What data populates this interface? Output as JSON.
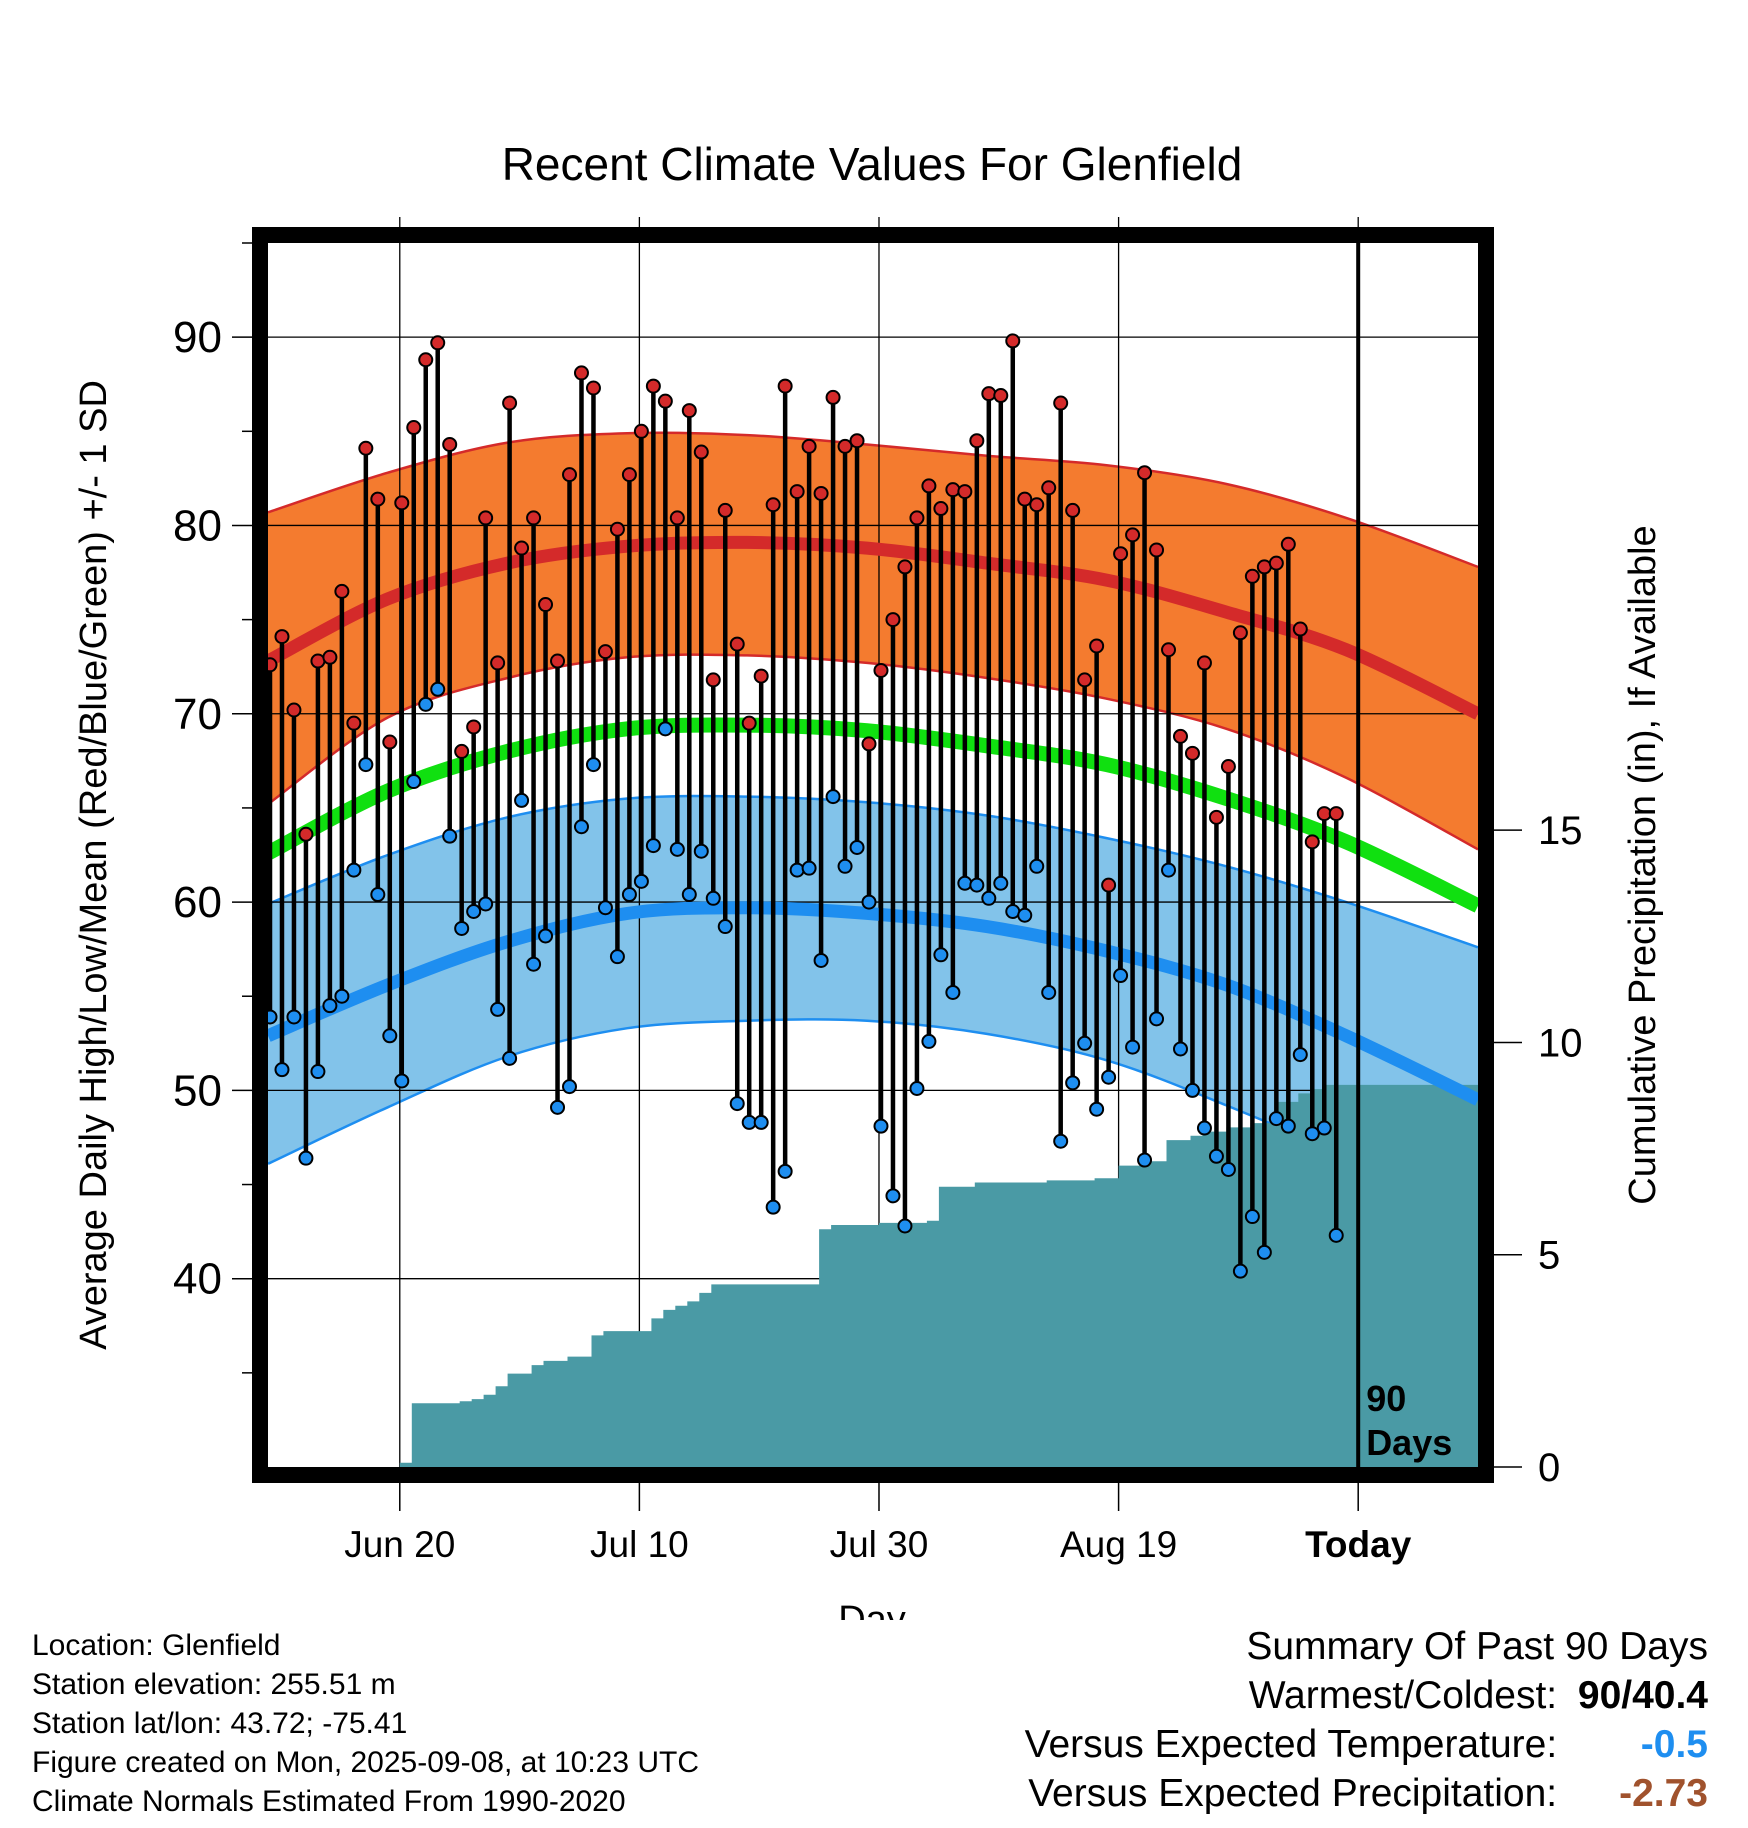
{
  "title": "Recent Climate Values For Glenfield",
  "chart_data": {
    "type": "line",
    "title": "Recent Climate Values For Glenfield",
    "xlabel": "Day",
    "ylabel_left": "Average Daily High/Low/Mean (Red/Blue/Green) +/- 1 SD",
    "ylabel_right": "Cumulative Precipitation (in), If Available",
    "x_tick_labels": [
      "Jun 20",
      "Jul 10",
      "Jul 30",
      "Aug 19",
      "Today"
    ],
    "x_tick_days": [
      11,
      31,
      51,
      71,
      91
    ],
    "xlim": [
      0,
      101
    ],
    "ylim_temp": [
      30,
      95
    ],
    "y_ticks_temp": [
      40,
      50,
      60,
      70,
      80,
      90
    ],
    "ylim_precip": [
      0,
      28.83
    ],
    "y_ticks_precip": [
      0,
      5,
      10,
      15
    ],
    "today_marker_label": "90 Days",
    "grid": true,
    "colors": {
      "high_band": "#f47b2f",
      "high_line": "#d42a2a",
      "low_band": "#82c3ea",
      "low_line": "#1e8ef0",
      "mean_line": "#10e010",
      "precip": "#4a9aa5",
      "high_marker": "#d42a2a",
      "low_marker": "#1e8ef0"
    },
    "normals_days": [
      0,
      10,
      20,
      30,
      40,
      50,
      60,
      70,
      80,
      90,
      101
    ],
    "normal_high": [
      72.8,
      76.1,
      78.0,
      78.9,
      79.1,
      78.8,
      78.0,
      77.1,
      75.4,
      73.4,
      70.0
    ],
    "normal_high_upper": [
      80.7,
      82.8,
      84.4,
      84.9,
      84.8,
      84.3,
      83.7,
      83.2,
      82.2,
      80.4,
      77.8
    ],
    "normal_high_lower": [
      65.2,
      69.8,
      71.9,
      73.0,
      73.1,
      72.7,
      71.9,
      70.8,
      69.2,
      66.6,
      62.8
    ],
    "normal_low": [
      52.9,
      55.6,
      57.9,
      59.4,
      59.7,
      59.4,
      58.7,
      57.4,
      55.6,
      52.9,
      49.5
    ],
    "normal_low_upper": [
      59.9,
      62.5,
      64.5,
      65.5,
      65.6,
      65.3,
      64.6,
      63.4,
      61.9,
      60.0,
      57.6
    ],
    "normal_low_lower": [
      46.1,
      49.1,
      51.8,
      53.3,
      53.7,
      53.7,
      53.0,
      51.6,
      49.2,
      46.4,
      42.4
    ],
    "normal_mean": [
      62.6,
      65.9,
      68.0,
      69.2,
      69.4,
      69.1,
      68.3,
      67.3,
      65.5,
      63.2,
      59.8
    ],
    "daily_days": [
      0,
      1,
      2,
      3,
      4,
      5,
      6,
      7,
      8,
      9,
      10,
      11,
      12,
      13,
      14,
      15,
      16,
      17,
      18,
      19,
      20,
      21,
      22,
      23,
      24,
      25,
      26,
      27,
      28,
      29,
      30,
      31,
      32,
      33,
      34,
      35,
      36,
      37,
      38,
      39,
      40,
      41,
      42,
      43,
      44,
      45,
      46,
      47,
      48,
      49,
      50,
      51,
      52,
      53,
      54,
      55,
      56,
      57,
      58,
      59,
      60,
      61,
      62,
      63,
      64,
      65,
      66,
      67,
      68,
      69,
      70,
      71,
      72,
      73,
      74,
      75,
      76,
      77,
      78,
      79,
      80,
      81,
      82,
      83,
      84,
      85,
      86,
      87,
      88,
      89
    ],
    "daily_high": [
      72.6,
      74.1,
      70.2,
      63.6,
      72.8,
      73.0,
      76.5,
      69.5,
      84.1,
      81.4,
      68.5,
      81.2,
      85.2,
      88.8,
      89.7,
      84.3,
      68.0,
      69.3,
      80.4,
      72.7,
      86.5,
      78.8,
      80.4,
      75.8,
      72.8,
      82.7,
      88.1,
      87.3,
      73.3,
      79.8,
      82.7,
      85.0,
      87.4,
      86.6,
      80.4,
      86.1,
      83.9,
      71.8,
      80.8,
      73.7,
      69.5,
      72.0,
      81.1,
      87.4,
      81.8,
      84.2,
      81.7,
      86.8,
      84.2,
      84.5,
      68.4,
      72.3,
      75.0,
      77.8,
      80.4,
      82.1,
      80.9,
      81.9,
      81.8,
      84.5,
      87.0,
      86.9,
      89.8,
      81.4,
      81.1,
      82.0,
      86.5,
      80.8,
      71.8,
      73.6,
      60.9,
      78.5,
      79.5,
      82.8,
      78.7,
      73.4,
      68.8,
      67.9,
      72.7,
      64.5,
      67.2,
      74.3,
      77.3,
      77.8,
      78.0,
      79.0,
      74.5,
      63.2,
      64.7,
      64.7
    ],
    "daily_low": [
      53.9,
      51.1,
      53.9,
      46.4,
      51.0,
      54.5,
      55.0,
      61.7,
      67.3,
      60.4,
      52.9,
      50.5,
      66.4,
      70.5,
      71.3,
      63.5,
      58.6,
      59.5,
      59.9,
      54.3,
      51.7,
      65.4,
      56.7,
      58.2,
      49.1,
      50.2,
      64.0,
      67.3,
      59.7,
      57.1,
      60.4,
      61.1,
      63.0,
      69.2,
      62.8,
      60.4,
      62.7,
      60.2,
      58.7,
      49.3,
      48.3,
      48.3,
      43.8,
      45.7,
      61.7,
      61.8,
      56.9,
      65.6,
      61.9,
      62.9,
      60.0,
      48.1,
      44.4,
      42.8,
      50.1,
      52.6,
      57.2,
      55.2,
      61.0,
      60.9,
      60.2,
      61.0,
      59.5,
      59.3,
      61.9,
      55.2,
      47.3,
      50.4,
      52.5,
      49.0,
      50.7,
      56.1,
      52.3,
      46.3,
      53.8,
      61.7,
      52.2,
      50.0,
      48.0,
      46.5,
      45.8,
      40.4,
      43.3,
      41.4,
      48.5,
      48.1,
      51.9,
      47.7,
      48.0,
      42.3
    ],
    "precip_days": [
      0,
      10,
      11,
      12,
      13,
      14,
      15,
      16,
      17,
      18,
      19,
      20,
      21,
      22,
      23,
      24,
      25,
      26,
      27,
      28,
      29,
      30,
      31,
      32,
      33,
      34,
      35,
      36,
      37,
      38,
      39,
      40,
      41,
      42,
      43,
      44,
      45,
      46,
      47,
      48,
      49,
      50,
      51,
      52,
      53,
      54,
      55,
      56,
      57,
      58,
      59,
      60,
      61,
      62,
      63,
      64,
      65,
      66,
      67,
      68,
      69,
      70,
      71,
      72,
      73,
      74,
      75,
      76,
      77,
      78,
      79,
      80,
      81,
      82,
      83,
      84,
      85,
      86,
      87,
      88,
      89,
      90,
      101
    ],
    "precip": [
      0,
      0,
      0.1,
      1.5,
      1.5,
      1.5,
      1.5,
      1.55,
      1.6,
      1.7,
      1.9,
      2.2,
      2.2,
      2.4,
      2.5,
      2.5,
      2.6,
      2.6,
      3.1,
      3.2,
      3.2,
      3.2,
      3.2,
      3.5,
      3.7,
      3.8,
      3.9,
      4.1,
      4.3,
      4.3,
      4.3,
      4.3,
      4.3,
      4.3,
      4.3,
      4.3,
      4.3,
      5.6,
      5.7,
      5.7,
      5.7,
      5.7,
      5.75,
      5.75,
      5.75,
      5.75,
      5.8,
      6.6,
      6.6,
      6.6,
      6.7,
      6.7,
      6.7,
      6.7,
      6.7,
      6.7,
      6.75,
      6.75,
      6.75,
      6.75,
      6.8,
      6.8,
      7.1,
      7.1,
      7.2,
      7.2,
      7.7,
      7.7,
      7.8,
      7.9,
      7.9,
      8.0,
      8.0,
      8.1,
      8.1,
      8.6,
      8.6,
      8.8,
      8.9,
      9.0,
      9.0,
      9.0,
      9.0
    ]
  },
  "footer": {
    "location": "Location: Glenfield",
    "elevation": "Station elevation: 255.51 m",
    "latlon": "Station lat/lon: 43.72; -75.41",
    "created": "Figure created on Mon, 2025-09-08, at 10:23 UTC",
    "normals": "Climate Normals Estimated From 1990-2020"
  },
  "summary": {
    "heading": "Summary Of Past 90 Days",
    "warm_cold_label": "Warmest/Coldest:",
    "warm_cold_value": "90/40.4",
    "temp_label": "Versus Expected Temperature:",
    "temp_value": "-0.5",
    "temp_color": "#1e8ef0",
    "precip_label": "Versus Expected Precipitation:",
    "precip_value": "-2.73",
    "precip_color": "#a0522d"
  }
}
